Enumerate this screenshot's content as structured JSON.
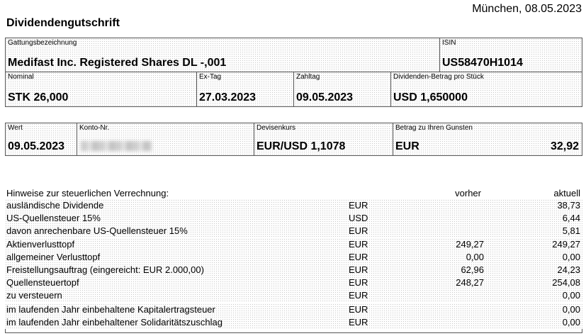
{
  "header": {
    "place_date": "München, 08.05.2023",
    "title": "Dividendengutschrift"
  },
  "security": {
    "name_label": "Gattungsbezeichnung",
    "name": "Medifast Inc. Registered Shares DL -,001",
    "isin_label": "ISIN",
    "isin": "US58470H1014"
  },
  "details": {
    "nominal_label": "Nominal",
    "nominal": "STK 26,000",
    "ex_tag_label": "Ex-Tag",
    "ex_tag": "27.03.2023",
    "zahltag_label": "Zahltag",
    "zahltag": "09.05.2023",
    "dividend_label": "Dividenden-Betrag pro Stück",
    "dividend": "USD 1,650000"
  },
  "payment": {
    "wert_label": "Wert",
    "wert": "09.05.2023",
    "konto_label": "Konto-Nr.",
    "devisenkurs_label": "Devisenkurs",
    "devisenkurs": "EUR/USD 1,1078",
    "betrag_label": "Betrag zu Ihren Gunsten",
    "betrag_currency": "EUR",
    "betrag_value": "32,92"
  },
  "tax": {
    "heading": "Hinweise zur steuerlichen Verrechnung:",
    "col_prev": "vorher",
    "col_current": "aktuell",
    "rows": [
      {
        "label": "ausländische Dividende",
        "currency": "EUR",
        "prev": "",
        "current": "38,73"
      },
      {
        "label": "US-Quellensteuer 15%",
        "currency": "USD",
        "prev": "",
        "current": "6,44"
      },
      {
        "label": "davon anrechenbare US-Quellensteuer 15%",
        "currency": "EUR",
        "prev": "",
        "current": "5,81"
      },
      {
        "label": "Aktienverlusttopf",
        "currency": "EUR",
        "prev": "249,27",
        "current": "249,27"
      },
      {
        "label": "allgemeiner Verlusttopf",
        "currency": "EUR",
        "prev": "0,00",
        "current": "0,00"
      },
      {
        "label": "Freistellungsauftrag (eingereicht: EUR 2.000,00)",
        "currency": "EUR",
        "prev": "62,96",
        "current": "24,23"
      },
      {
        "label": "Quellensteuertopf",
        "currency": "EUR",
        "prev": "248,27",
        "current": "254,08"
      },
      {
        "label": "zu versteuern",
        "currency": "EUR",
        "prev": "",
        "current": "0,00"
      },
      {
        "label": "im laufenden Jahr einbehaltene Kapitalertragsteuer",
        "currency": "EUR",
        "prev": "",
        "current": "0,00"
      },
      {
        "label": "im laufenden Jahr einbehaltener Solidaritätszuschlag",
        "currency": "EUR",
        "prev": "",
        "current": "0,00"
      }
    ]
  }
}
